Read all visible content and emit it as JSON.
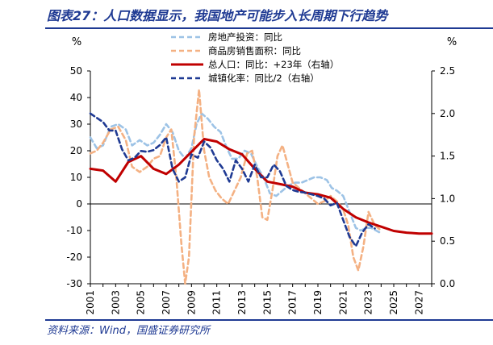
{
  "header": {
    "title": "图表27：人口数据显示，我国地产可能步入长周期下行趋势"
  },
  "footer": {
    "source": "资料来源：Wind，国盛证券研究所"
  },
  "chart_data": {
    "type": "line",
    "left_axis": {
      "label": "%",
      "ylim": [
        -30,
        50
      ],
      "ticks": [
        50,
        40,
        30,
        20,
        10,
        0,
        -10,
        -20,
        -30
      ]
    },
    "right_axis": {
      "label": "%",
      "ylim": [
        0.0,
        2.5
      ],
      "ticks": [
        "2.5",
        "2.0",
        "1.5",
        "1.0",
        "0.5",
        "0.0"
      ]
    },
    "x_axis": {
      "xlim": [
        2001,
        2028
      ],
      "ticks": [
        "2001",
        "2003",
        "2005",
        "2007",
        "2009",
        "2011",
        "2013",
        "2015",
        "2017",
        "2019",
        "2021",
        "2023",
        "2025",
        "2027"
      ]
    },
    "legend": {
      "placement": "top-center"
    },
    "series": [
      {
        "name": "房地产投资：同比",
        "axis": "left",
        "color": "#9dc3e6",
        "style": "dashed",
        "x": [
          2001.0,
          2001.5,
          2002.0,
          2002.6,
          2003.2,
          2003.8,
          2004.3,
          2004.9,
          2005.5,
          2006.0,
          2006.5,
          2007.0,
          2007.5,
          2008.0,
          2008.5,
          2009.0,
          2009.4,
          2009.8,
          2010.3,
          2010.8,
          2011.3,
          2011.8,
          2012.2,
          2012.7,
          2013.2,
          2013.7,
          2014.2,
          2014.7,
          2015.2,
          2015.7,
          2016.2,
          2016.7,
          2017.2,
          2017.7,
          2018.2,
          2018.7,
          2019.2,
          2019.7,
          2020.1,
          2020.5,
          2021.0,
          2021.5,
          2022.0,
          2022.4,
          2022.8,
          2023.2,
          2023.6,
          2024.0
        ],
        "y": [
          25,
          21,
          22,
          29,
          30,
          28,
          22,
          24,
          22,
          23,
          26,
          30,
          27,
          20,
          17,
          21,
          30,
          34,
          32,
          29,
          27,
          21,
          17,
          17,
          20,
          19,
          14,
          10,
          4,
          3,
          5,
          7,
          8,
          8,
          9,
          10,
          10,
          9,
          6,
          5,
          3,
          -3,
          -9,
          -10,
          -9,
          -9,
          -10,
          -11
        ]
      },
      {
        "name": "商品房销售面积：同比",
        "axis": "left",
        "color": "#f4b183",
        "style": "dashed",
        "x": [
          2001.0,
          2001.5,
          2002.0,
          2002.6,
          2003.2,
          2003.8,
          2004.3,
          2004.9,
          2005.5,
          2006.0,
          2006.5,
          2007.0,
          2007.4,
          2007.8,
          2008.2,
          2008.5,
          2008.8,
          2009.2,
          2009.6,
          2010.0,
          2010.4,
          2010.9,
          2011.4,
          2011.9,
          2012.4,
          2012.9,
          2013.4,
          2013.8,
          2014.2,
          2014.6,
          2015.0,
          2015.4,
          2015.8,
          2016.2,
          2016.6,
          2017.0,
          2017.5,
          2018.0,
          2018.5,
          2019.0,
          2019.5,
          2020.0,
          2020.5,
          2021.0,
          2021.4,
          2021.8,
          2022.2,
          2022.6,
          2023.0,
          2023.5,
          2024.0
        ],
        "y": [
          19,
          20,
          23,
          28,
          29,
          24,
          14,
          12,
          14,
          17,
          18,
          25,
          28,
          10,
          -15,
          -30,
          -20,
          25,
          43,
          20,
          10,
          5,
          2,
          0,
          5,
          10,
          19,
          20,
          10,
          -5,
          -6,
          5,
          18,
          22,
          15,
          8,
          6,
          4,
          2,
          0,
          1,
          3,
          1,
          -2,
          -8,
          -20,
          -25,
          -16,
          -3,
          -8,
          -10
        ]
      },
      {
        "name": "总人口：同比：+23年（右轴）",
        "axis": "right",
        "color": "#c00000",
        "style": "solid",
        "x": [
          2001,
          2002,
          2003,
          2004,
          2005,
          2006,
          2007,
          2008,
          2009,
          2010,
          2011,
          2012,
          2013,
          2014,
          2015,
          2016,
          2017,
          2018,
          2019,
          2020,
          2021,
          2022,
          2023,
          2024,
          2025,
          2026,
          2027,
          2028
        ],
        "y": [
          1.35,
          1.33,
          1.2,
          1.43,
          1.5,
          1.35,
          1.29,
          1.4,
          1.55,
          1.7,
          1.67,
          1.58,
          1.52,
          1.35,
          1.2,
          1.17,
          1.14,
          1.07,
          1.05,
          1.01,
          0.88,
          0.78,
          0.72,
          0.67,
          0.62,
          0.6,
          0.59,
          0.59
        ]
      },
      {
        "name": "城镇化率：同比/2（右轴）",
        "axis": "right",
        "color": "#1f3a93",
        "style": "dashed",
        "x": [
          2001.0,
          2001.5,
          2002.0,
          2002.5,
          2003.0,
          2003.5,
          2004.0,
          2004.5,
          2005.0,
          2005.5,
          2006.0,
          2006.5,
          2007.0,
          2007.5,
          2008.0,
          2008.5,
          2009.0,
          2009.5,
          2010.0,
          2010.5,
          2011.0,
          2011.5,
          2012.0,
          2012.5,
          2013.0,
          2013.5,
          2014.0,
          2014.5,
          2015.0,
          2015.5,
          2016.0,
          2016.5,
          2017.0,
          2017.5,
          2018.0,
          2018.5,
          2019.0,
          2019.5,
          2020.0,
          2020.5,
          2021.0,
          2021.5,
          2022.0,
          2022.5,
          2023.0,
          2023.5
        ],
        "y": [
          2.0,
          1.95,
          1.9,
          1.8,
          1.8,
          1.58,
          1.45,
          1.48,
          1.56,
          1.55,
          1.57,
          1.63,
          1.72,
          1.35,
          1.2,
          1.25,
          1.52,
          1.48,
          1.67,
          1.6,
          1.45,
          1.35,
          1.2,
          1.45,
          1.35,
          1.2,
          1.4,
          1.25,
          1.25,
          1.4,
          1.32,
          1.15,
          1.1,
          1.08,
          1.07,
          1.05,
          1.03,
          1.0,
          0.92,
          0.95,
          0.75,
          0.55,
          0.44,
          0.6,
          0.7,
          0.65
        ]
      }
    ]
  }
}
